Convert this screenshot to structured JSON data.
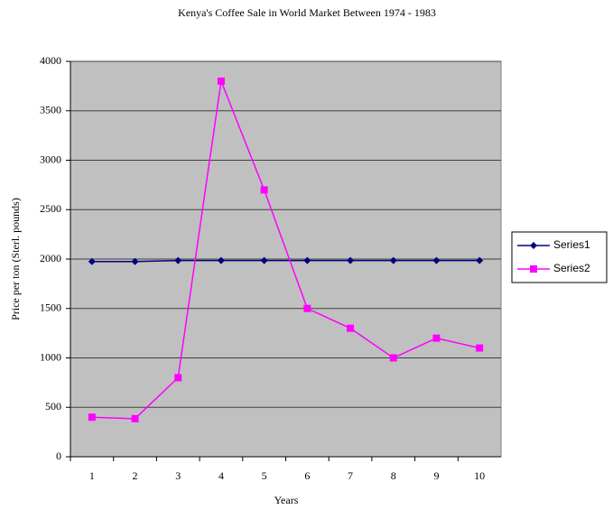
{
  "chart_data": {
    "type": "line",
    "title": "Kenya's Coffee Sale in World Market Between 1974 - 1983",
    "x_label": "Years",
    "y_label": "Price per ton (Sterl. pounds)",
    "categories": [
      "1",
      "2",
      "3",
      "4",
      "5",
      "6",
      "7",
      "8",
      "9",
      "10"
    ],
    "series": [
      {
        "name": "Series1",
        "color": "#000080",
        "marker": "diamond",
        "values": [
          1975,
          1975,
          1985,
          1985,
          1985,
          1985,
          1985,
          1985,
          1985,
          1985
        ]
      },
      {
        "name": "Series2",
        "color": "#ff00ff",
        "marker": "square",
        "values": [
          400,
          385,
          800,
          3800,
          2700,
          1500,
          1300,
          1000,
          1200,
          1100
        ]
      }
    ],
    "ylim": [
      0,
      4000
    ],
    "yticks": [
      0,
      500,
      1000,
      1500,
      2000,
      2500,
      3000,
      3500,
      4000
    ],
    "grid": true,
    "legend": "right"
  }
}
